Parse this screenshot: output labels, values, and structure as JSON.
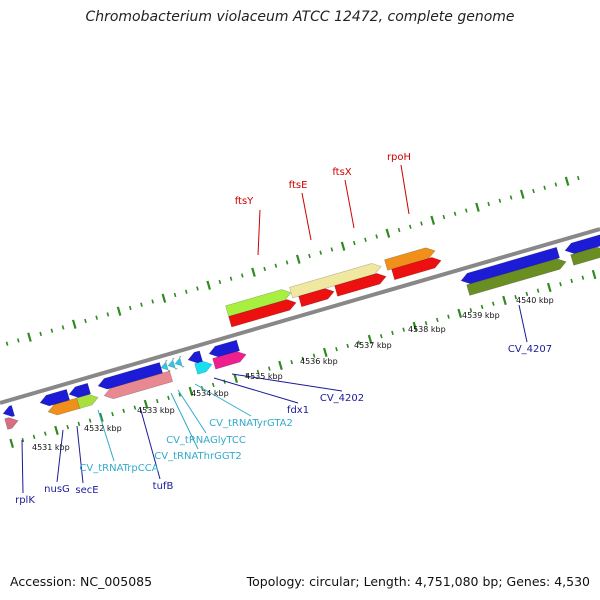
{
  "title": "Chromobacterium violaceum ATCC 12472, complete genome",
  "footer": {
    "accession": "Accession: NC_005085",
    "summary": "Topology: circular; Length: 4,751,080 bp; Genes: 4,530"
  },
  "colors": {
    "backbone": "#888888",
    "tick": "#2e8b1e",
    "label_red": "#cc0000",
    "label_navy": "#1a1a99",
    "label_cyan": "#33aacc"
  },
  "scale_labels": [
    "4531 kbp",
    "4532 kbp",
    "4533 kbp",
    "4534 kbp",
    "4535 kbp",
    "4536 kbp",
    "4537 kbp",
    "4538 kbp",
    "4539 kbp",
    "4540 kbp"
  ],
  "gene_labels": [
    {
      "text": "ftsY",
      "color": "red"
    },
    {
      "text": "ftsE",
      "color": "red"
    },
    {
      "text": "ftsX",
      "color": "red"
    },
    {
      "text": "rpoH",
      "color": "red"
    },
    {
      "text": "CV_4207",
      "color": "navy"
    },
    {
      "text": "CV_4202",
      "color": "navy"
    },
    {
      "text": "fdx1",
      "color": "navy"
    },
    {
      "text": "CV_tRNATyrGTA2",
      "color": "cyan"
    },
    {
      "text": "CV_tRNAGlyTCC",
      "color": "cyan"
    },
    {
      "text": "CV_tRNAThrGGT2",
      "color": "cyan"
    },
    {
      "text": "tufB",
      "color": "navy"
    },
    {
      "text": "CV_tRNATrpCCA",
      "color": "cyan"
    },
    {
      "text": "secE",
      "color": "navy"
    },
    {
      "text": "nusG",
      "color": "navy"
    },
    {
      "text": "rplK",
      "color": "navy"
    }
  ],
  "features": [
    {
      "color": "#d86e80",
      "track": "inner2"
    },
    {
      "color": "#1c1cd6",
      "track": "inner1"
    },
    {
      "color": "#f0901a",
      "track": "inner2"
    },
    {
      "color": "#1c1cd6",
      "track": "inner1"
    },
    {
      "color": "#a8e040",
      "track": "inner2"
    },
    {
      "color": "#1c1cd6",
      "track": "inner1"
    },
    {
      "color": "#e88890",
      "track": "inner2"
    },
    {
      "color": "#1c1cd6",
      "track": "inner1"
    },
    {
      "color": "#30c8e0",
      "track": "inner1"
    },
    {
      "color": "#30c8e0",
      "track": "inner1"
    },
    {
      "color": "#30c8e0",
      "track": "inner1"
    },
    {
      "color": "#1c1cd6",
      "track": "inner1"
    },
    {
      "color": "#18e0f0",
      "track": "inner2"
    },
    {
      "color": "#1c1cd6",
      "track": "inner1"
    },
    {
      "color": "#ee2090",
      "track": "inner2"
    },
    {
      "color": "#ec1010",
      "track": "outer1"
    },
    {
      "color": "#a8f040",
      "track": "outer2"
    },
    {
      "color": "#ec1010",
      "track": "outer1"
    },
    {
      "color": "#f0e8a0",
      "track": "outer2"
    },
    {
      "color": "#ec1010",
      "track": "outer1"
    },
    {
      "color": "#ec1010",
      "track": "outer1"
    },
    {
      "color": "#f0901a",
      "track": "outer2"
    },
    {
      "color": "#1c1cd6",
      "track": "inner1"
    },
    {
      "color": "#6b8e23",
      "track": "inner2"
    },
    {
      "color": "#1c1cd6",
      "track": "inner1"
    },
    {
      "color": "#6b8e23",
      "track": "inner2"
    }
  ]
}
